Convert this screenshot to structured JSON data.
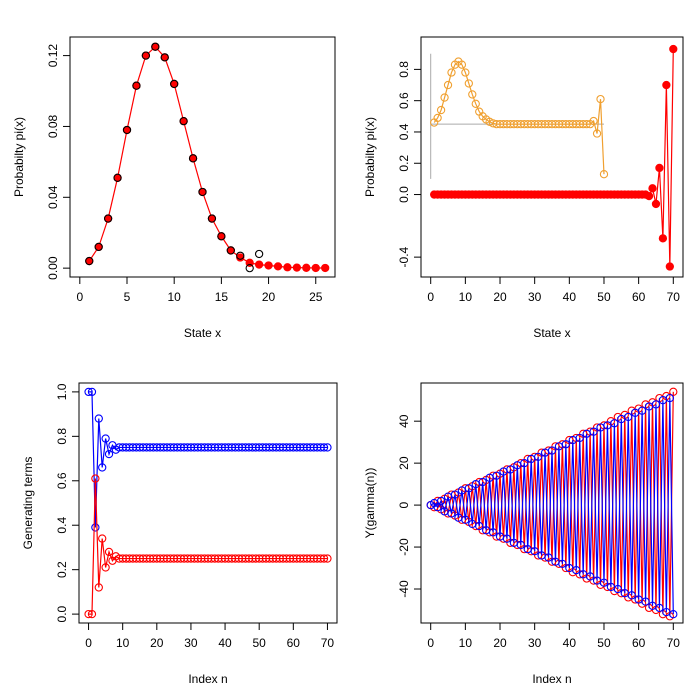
{
  "chart_data": [
    {
      "type": "line",
      "x_label": "State x",
      "y_label": "Probabilty pi(x)",
      "xlim": [
        -1.04,
        27.04
      ],
      "ylim": [
        -0.005,
        0.1305
      ],
      "xticks": [
        0,
        5,
        10,
        15,
        20,
        25
      ],
      "yticks": [
        {
          "value": 0,
          "label": "0.00"
        },
        {
          "value": 0.04,
          "label": "0.04"
        },
        {
          "value": 0.08,
          "label": "0.08"
        },
        {
          "value": 0.12,
          "label": "0.12"
        }
      ],
      "series": [
        {
          "color": "#ff0000",
          "filled": true,
          "line": true,
          "x": [
            1,
            2,
            3,
            4,
            5,
            6,
            7,
            8,
            9,
            10,
            11,
            12,
            13,
            14,
            15,
            16,
            17,
            18,
            19,
            20,
            21,
            22,
            23,
            24,
            25,
            26
          ],
          "values": [
            0.004,
            0.012,
            0.028,
            0.051,
            0.078,
            0.103,
            0.12,
            0.125,
            0.119,
            0.104,
            0.083,
            0.062,
            0.043,
            0.028,
            0.018,
            0.01,
            0.006,
            0.003,
            0.002,
            0.0015,
            0.001,
            0.0005,
            0.0003,
            0.0002,
            0.0001,
            0.0001
          ]
        },
        {
          "color": "#000000",
          "filled": false,
          "line": false,
          "x": [
            1,
            2,
            3,
            4,
            5,
            6,
            7,
            8,
            9,
            10,
            11,
            12,
            13,
            14,
            15,
            16,
            17,
            18,
            19
          ],
          "values": [
            0.004,
            0.012,
            0.028,
            0.051,
            0.078,
            0.103,
            0.12,
            0.125,
            0.119,
            0.104,
            0.083,
            0.062,
            0.043,
            0.028,
            0.018,
            0.01,
            0.007,
            0,
            0.008
          ]
        }
      ]
    },
    {
      "type": "line",
      "x_label": "State x",
      "y_label": "Probabilty pi(x)",
      "xlim": [
        -2.8,
        72.8
      ],
      "ylim": [
        -0.527,
        1.007
      ],
      "xticks": [
        0,
        10,
        20,
        30,
        40,
        50,
        60,
        70
      ],
      "yticks": [
        -0.4,
        {
          "value": 0,
          "label": "0.0"
        },
        0.2,
        0.4,
        0.6,
        0.8
      ],
      "reference_lines": [
        {
          "color": "#aaaaaa",
          "x": [
            0,
            50
          ],
          "y": [
            0.45,
            0.45
          ]
        },
        {
          "color": "#aaaaaa",
          "x": [
            0,
            0
          ],
          "y": [
            0.1,
            0.9
          ]
        }
      ],
      "series": [
        {
          "color": "#f0a030",
          "filled": false,
          "line": true,
          "x": [
            1,
            2,
            3,
            4,
            5,
            6,
            7,
            8,
            9,
            10,
            11,
            12,
            13,
            14,
            15,
            16,
            17,
            18,
            19,
            20,
            21,
            22,
            23,
            24,
            25,
            26,
            27,
            28,
            29,
            30,
            31,
            32,
            33,
            34,
            35,
            36,
            37,
            38,
            39,
            40,
            41,
            42,
            43,
            44,
            45,
            46,
            47,
            48,
            49,
            50
          ],
          "values": [
            0.46,
            0.49,
            0.54,
            0.62,
            0.7,
            0.78,
            0.83,
            0.85,
            0.83,
            0.78,
            0.71,
            0.64,
            0.58,
            0.53,
            0.5,
            0.48,
            0.465,
            0.455,
            0.45,
            0.45,
            0.45,
            0.45,
            0.45,
            0.45,
            0.45,
            0.45,
            0.45,
            0.45,
            0.45,
            0.45,
            0.45,
            0.45,
            0.45,
            0.45,
            0.45,
            0.45,
            0.45,
            0.45,
            0.45,
            0.45,
            0.45,
            0.45,
            0.45,
            0.45,
            0.45,
            0.45,
            0.47,
            0.39,
            0.61,
            0.13
          ]
        },
        {
          "color": "#ff0000",
          "filled": true,
          "line": true,
          "x": [
            1,
            2,
            3,
            4,
            5,
            6,
            7,
            8,
            9,
            10,
            11,
            12,
            13,
            14,
            15,
            16,
            17,
            18,
            19,
            20,
            21,
            22,
            23,
            24,
            25,
            26,
            27,
            28,
            29,
            30,
            31,
            32,
            33,
            34,
            35,
            36,
            37,
            38,
            39,
            40,
            41,
            42,
            43,
            44,
            45,
            46,
            47,
            48,
            49,
            50,
            51,
            52,
            53,
            54,
            55,
            56,
            57,
            58,
            59,
            60,
            61,
            62,
            63,
            64,
            65,
            66,
            67,
            68,
            69,
            70
          ],
          "values": [
            0,
            0,
            0,
            0,
            0,
            0,
            0,
            0,
            0,
            0,
            0,
            0,
            0,
            0,
            0,
            0,
            0,
            0,
            0,
            0,
            0,
            0,
            0,
            0,
            0,
            0,
            0,
            0,
            0,
            0,
            0,
            0,
            0,
            0,
            0,
            0,
            0,
            0,
            0,
            0,
            0,
            0,
            0,
            0,
            0,
            0,
            0,
            0,
            0,
            0,
            0,
            0,
            0,
            0,
            0,
            0,
            0,
            0,
            0,
            0,
            0,
            0,
            -0.01,
            0.04,
            -0.06,
            0.17,
            -0.28,
            0.7,
            -0.46,
            0.93
          ]
        }
      ]
    },
    {
      "type": "line",
      "x_label": "Index n",
      "y_label": "Generating terms",
      "xlim": [
        -2.8,
        72.8
      ],
      "ylim": [
        -0.04,
        1.04
      ],
      "xticks": [
        0,
        10,
        20,
        30,
        40,
        50,
        60,
        70
      ],
      "yticks": [
        {
          "value": 0,
          "label": "0.0"
        },
        0.2,
        0.4,
        0.6,
        0.8,
        {
          "value": 1,
          "label": "1.0"
        }
      ],
      "series": [
        {
          "color": "#0000ff",
          "filled": false,
          "line": true,
          "x": [
            0,
            1,
            2,
            3,
            4,
            5,
            6,
            7,
            8,
            9,
            10,
            11,
            12,
            13,
            14,
            15,
            16,
            17,
            18,
            19,
            20,
            21,
            22,
            23,
            24,
            25,
            26,
            27,
            28,
            29,
            30,
            31,
            32,
            33,
            34,
            35,
            36,
            37,
            38,
            39,
            40,
            41,
            42,
            43,
            44,
            45,
            46,
            47,
            48,
            49,
            50,
            51,
            52,
            53,
            54,
            55,
            56,
            57,
            58,
            59,
            60,
            61,
            62,
            63,
            64,
            65,
            66,
            67,
            68,
            69,
            70
          ],
          "values": [
            1,
            1,
            0.39,
            0.88,
            0.66,
            0.79,
            0.72,
            0.76,
            0.74,
            0.75,
            0.75,
            0.75,
            0.75,
            0.75,
            0.75,
            0.75,
            0.75,
            0.75,
            0.75,
            0.75,
            0.75,
            0.75,
            0.75,
            0.75,
            0.75,
            0.75,
            0.75,
            0.75,
            0.75,
            0.75,
            0.75,
            0.75,
            0.75,
            0.75,
            0.75,
            0.75,
            0.75,
            0.75,
            0.75,
            0.75,
            0.75,
            0.75,
            0.75,
            0.75,
            0.75,
            0.75,
            0.75,
            0.75,
            0.75,
            0.75,
            0.75,
            0.75,
            0.75,
            0.75,
            0.75,
            0.75,
            0.75,
            0.75,
            0.75,
            0.75,
            0.75,
            0.75,
            0.75,
            0.75,
            0.75,
            0.75,
            0.75,
            0.75,
            0.75,
            0.75,
            0.75
          ]
        },
        {
          "color": "#ff0000",
          "filled": false,
          "line": true,
          "x": [
            0,
            1,
            2,
            3,
            4,
            5,
            6,
            7,
            8,
            9,
            10,
            11,
            12,
            13,
            14,
            15,
            16,
            17,
            18,
            19,
            20,
            21,
            22,
            23,
            24,
            25,
            26,
            27,
            28,
            29,
            30,
            31,
            32,
            33,
            34,
            35,
            36,
            37,
            38,
            39,
            40,
            41,
            42,
            43,
            44,
            45,
            46,
            47,
            48,
            49,
            50,
            51,
            52,
            53,
            54,
            55,
            56,
            57,
            58,
            59,
            60,
            61,
            62,
            63,
            64,
            65,
            66,
            67,
            68,
            69,
            70
          ],
          "values": [
            0,
            0,
            0.61,
            0.12,
            0.34,
            0.21,
            0.28,
            0.24,
            0.26,
            0.25,
            0.25,
            0.25,
            0.25,
            0.25,
            0.25,
            0.25,
            0.25,
            0.25,
            0.25,
            0.25,
            0.25,
            0.25,
            0.25,
            0.25,
            0.25,
            0.25,
            0.25,
            0.25,
            0.25,
            0.25,
            0.25,
            0.25,
            0.25,
            0.25,
            0.25,
            0.25,
            0.25,
            0.25,
            0.25,
            0.25,
            0.25,
            0.25,
            0.25,
            0.25,
            0.25,
            0.25,
            0.25,
            0.25,
            0.25,
            0.25,
            0.25,
            0.25,
            0.25,
            0.25,
            0.25,
            0.25,
            0.25,
            0.25,
            0.25,
            0.25,
            0.25,
            0.25,
            0.25,
            0.25,
            0.25,
            0.25,
            0.25,
            0.25,
            0.25,
            0.25,
            0.25
          ]
        }
      ]
    },
    {
      "type": "line",
      "x_label": "Index n",
      "y_label": "Y(gamma(n))",
      "xlim": [
        -2.8,
        72.8
      ],
      "ylim": [
        -56.2,
        58.2
      ],
      "xticks": [
        0,
        10,
        20,
        30,
        40,
        50,
        60,
        70
      ],
      "yticks": [
        -40,
        -20,
        0,
        20,
        40
      ],
      "series": [
        {
          "color": "#ff0000",
          "filled": false,
          "line": true,
          "x": [
            0,
            1,
            2,
            3,
            4,
            5,
            6,
            7,
            8,
            9,
            10,
            11,
            12,
            13,
            14,
            15,
            16,
            17,
            18,
            19,
            20,
            21,
            22,
            23,
            24,
            25,
            26,
            27,
            28,
            29,
            30,
            31,
            32,
            33,
            34,
            35,
            36,
            37,
            38,
            39,
            40,
            41,
            42,
            43,
            44,
            45,
            46,
            47,
            48,
            49,
            50,
            51,
            52,
            53,
            54,
            55,
            56,
            57,
            58,
            59,
            60,
            61,
            62,
            63,
            64,
            65,
            66,
            67,
            68,
            69,
            70
          ],
          "values": [
            0,
            -1,
            2,
            -2,
            3,
            -4,
            5,
            -5,
            6,
            -7,
            8,
            -8,
            9,
            -10,
            11,
            -12,
            12,
            -13,
            14,
            -15,
            15,
            -16,
            17,
            -18,
            18,
            -19,
            20,
            -21,
            22,
            -22,
            23,
            -24,
            25,
            -25,
            26,
            -27,
            28,
            -28,
            29,
            -30,
            31,
            -32,
            32,
            -33,
            34,
            -35,
            35,
            -36,
            37,
            -38,
            38,
            -39,
            40,
            -41,
            42,
            -42,
            43,
            -44,
            45,
            -45,
            46,
            -47,
            48,
            -49,
            49,
            -50,
            51,
            -52,
            52,
            -53,
            54
          ]
        },
        {
          "color": "#0000ff",
          "filled": false,
          "line": true,
          "x": [
            0,
            1,
            2,
            3,
            4,
            5,
            6,
            7,
            8,
            9,
            10,
            11,
            12,
            13,
            14,
            15,
            16,
            17,
            18,
            19,
            20,
            21,
            22,
            23,
            24,
            25,
            26,
            27,
            28,
            29,
            30,
            31,
            32,
            33,
            34,
            35,
            36,
            37,
            38,
            39,
            40,
            41,
            42,
            43,
            44,
            45,
            46,
            47,
            48,
            49,
            50,
            51,
            52,
            53,
            54,
            55,
            56,
            57,
            58,
            59,
            60,
            61,
            62,
            63,
            64,
            65,
            66,
            67,
            68,
            69,
            70
          ],
          "values": [
            0,
            1,
            -1,
            2,
            -3,
            4,
            -4,
            5,
            -6,
            7,
            -7,
            8,
            -9,
            10,
            -10,
            11,
            -12,
            13,
            -13,
            14,
            -15,
            16,
            -16,
            17,
            -18,
            19,
            -19,
            20,
            -21,
            22,
            -22,
            23,
            -24,
            25,
            -25,
            26,
            -27,
            28,
            -28,
            29,
            -30,
            31,
            -31,
            32,
            -33,
            34,
            -34,
            35,
            -36,
            37,
            -37,
            38,
            -39,
            39,
            -40,
            41,
            -42,
            42,
            -43,
            44,
            -45,
            45,
            -46,
            47,
            -48,
            48,
            -49,
            50,
            -51,
            51,
            -52
          ]
        }
      ]
    }
  ]
}
